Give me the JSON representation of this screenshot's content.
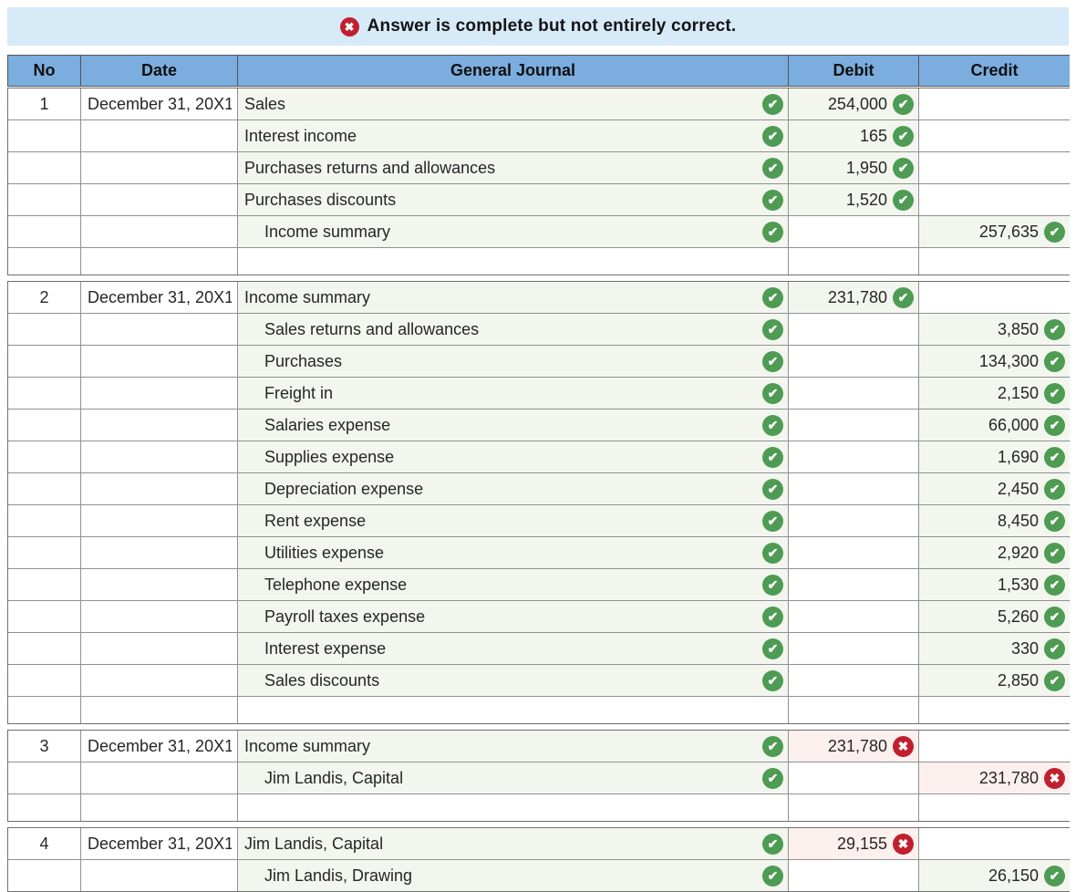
{
  "banner": {
    "message": "Answer is complete but not entirely correct.",
    "bg_color": "#d7eaf8",
    "icon": "x-circle-icon",
    "icon_color": "#c0202e"
  },
  "table": {
    "header_bg": "#7badde",
    "columns": [
      {
        "label": "No"
      },
      {
        "label": "Date"
      },
      {
        "label": "General Journal"
      },
      {
        "label": "Debit"
      },
      {
        "label": "Credit"
      }
    ]
  },
  "status_colors": {
    "correct": "#4e9b53",
    "wrong": "#c0202e"
  },
  "status_icons": {
    "correct": "check-circle-icon",
    "wrong": "x-circle-icon"
  },
  "entries": [
    {
      "no": "1",
      "date": "December 31, 20X1",
      "lines": [
        {
          "account": "Sales",
          "indent": 0,
          "account_check": "correct",
          "debit": "254,000",
          "debit_check": "correct",
          "credit": "",
          "credit_check": ""
        },
        {
          "account": "Interest income",
          "indent": 0,
          "account_check": "correct",
          "debit": "165",
          "debit_check": "correct",
          "credit": "",
          "credit_check": ""
        },
        {
          "account": "Purchases returns and allowances",
          "indent": 0,
          "account_check": "correct",
          "debit": "1,950",
          "debit_check": "correct",
          "credit": "",
          "credit_check": ""
        },
        {
          "account": "Purchases discounts",
          "indent": 0,
          "account_check": "correct",
          "debit": "1,520",
          "debit_check": "correct",
          "credit": "",
          "credit_check": ""
        },
        {
          "account": "Income summary",
          "indent": 1,
          "account_check": "correct",
          "debit": "",
          "debit_check": "",
          "credit": "257,635",
          "credit_check": "correct"
        }
      ]
    },
    {
      "no": "2",
      "date": "December 31, 20X1",
      "lines": [
        {
          "account": "Income summary",
          "indent": 0,
          "account_check": "correct",
          "debit": "231,780",
          "debit_check": "correct",
          "credit": "",
          "credit_check": ""
        },
        {
          "account": "Sales returns and allowances",
          "indent": 1,
          "account_check": "correct",
          "debit": "",
          "debit_check": "",
          "credit": "3,850",
          "credit_check": "correct"
        },
        {
          "account": "Purchases",
          "indent": 1,
          "account_check": "correct",
          "debit": "",
          "debit_check": "",
          "credit": "134,300",
          "credit_check": "correct"
        },
        {
          "account": "Freight in",
          "indent": 1,
          "account_check": "correct",
          "debit": "",
          "debit_check": "",
          "credit": "2,150",
          "credit_check": "correct"
        },
        {
          "account": "Salaries expense",
          "indent": 1,
          "account_check": "correct",
          "debit": "",
          "debit_check": "",
          "credit": "66,000",
          "credit_check": "correct"
        },
        {
          "account": "Supplies expense",
          "indent": 1,
          "account_check": "correct",
          "debit": "",
          "debit_check": "",
          "credit": "1,690",
          "credit_check": "correct"
        },
        {
          "account": "Depreciation expense",
          "indent": 1,
          "account_check": "correct",
          "debit": "",
          "debit_check": "",
          "credit": "2,450",
          "credit_check": "correct"
        },
        {
          "account": "Rent expense",
          "indent": 1,
          "account_check": "correct",
          "debit": "",
          "debit_check": "",
          "credit": "8,450",
          "credit_check": "correct"
        },
        {
          "account": "Utilities expense",
          "indent": 1,
          "account_check": "correct",
          "debit": "",
          "debit_check": "",
          "credit": "2,920",
          "credit_check": "correct"
        },
        {
          "account": "Telephone expense",
          "indent": 1,
          "account_check": "correct",
          "debit": "",
          "debit_check": "",
          "credit": "1,530",
          "credit_check": "correct"
        },
        {
          "account": "Payroll taxes expense",
          "indent": 1,
          "account_check": "correct",
          "debit": "",
          "debit_check": "",
          "credit": "5,260",
          "credit_check": "correct"
        },
        {
          "account": "Interest expense",
          "indent": 1,
          "account_check": "correct",
          "debit": "",
          "debit_check": "",
          "credit": "330",
          "credit_check": "correct"
        },
        {
          "account": "Sales discounts",
          "indent": 1,
          "account_check": "correct",
          "debit": "",
          "debit_check": "",
          "credit": "2,850",
          "credit_check": "correct"
        }
      ]
    },
    {
      "no": "3",
      "date": "December 31, 20X1",
      "lines": [
        {
          "account": "Income summary",
          "indent": 0,
          "account_check": "correct",
          "debit": "231,780",
          "debit_check": "wrong",
          "credit": "",
          "credit_check": ""
        },
        {
          "account": "Jim Landis, Capital",
          "indent": 1,
          "account_check": "correct",
          "debit": "",
          "debit_check": "",
          "credit": "231,780",
          "credit_check": "wrong"
        }
      ]
    },
    {
      "no": "4",
      "date": "December 31, 20X1",
      "lines": [
        {
          "account": "Jim Landis, Capital",
          "indent": 0,
          "account_check": "correct",
          "debit": "29,155",
          "debit_check": "wrong",
          "credit": "",
          "credit_check": ""
        },
        {
          "account": "Jim Landis, Drawing",
          "indent": 1,
          "account_check": "correct",
          "debit": "",
          "debit_check": "",
          "credit": "26,150",
          "credit_check": "correct"
        }
      ]
    }
  ]
}
